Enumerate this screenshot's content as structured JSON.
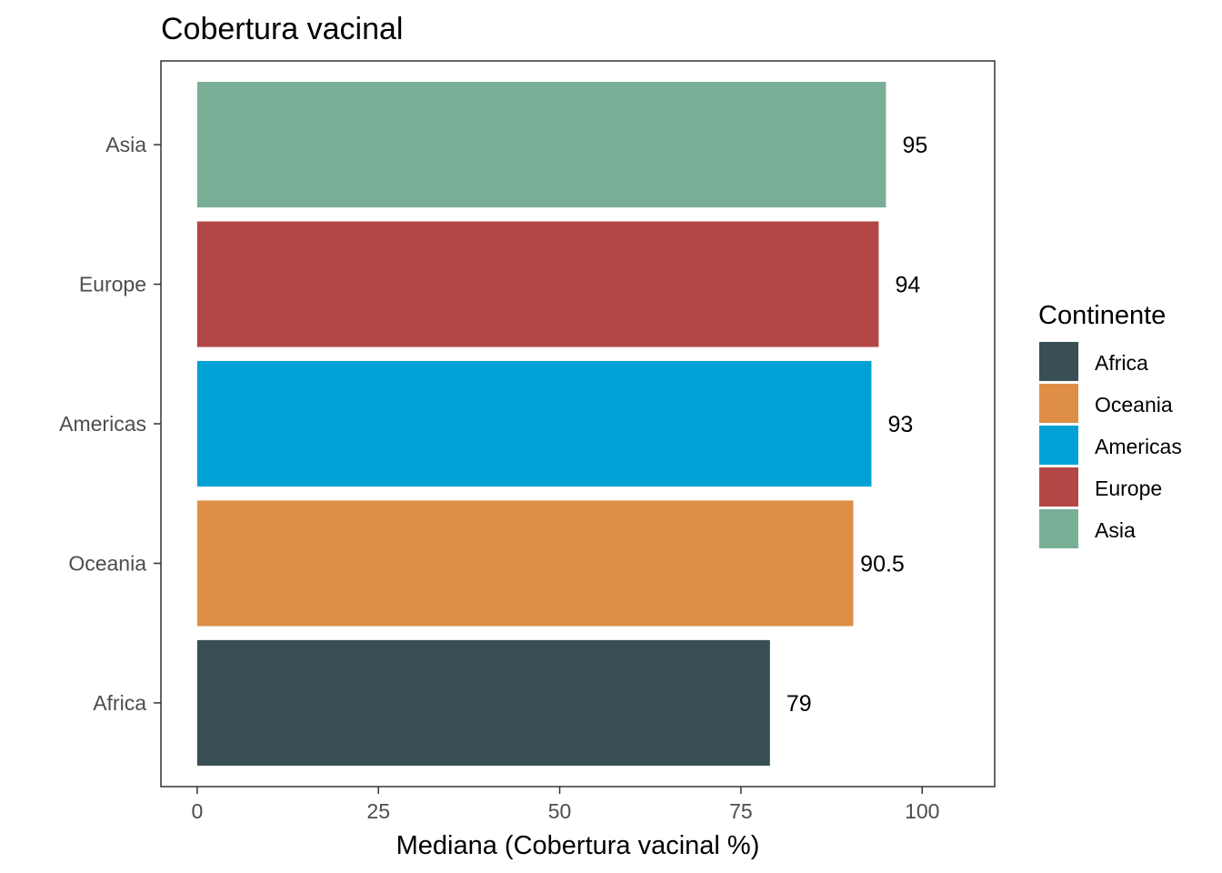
{
  "chart_data": {
    "type": "bar",
    "orientation": "horizontal",
    "title": "Cobertura vacinal",
    "xlabel": "Mediana (Cobertura vacinal %)",
    "ylabel": "",
    "xlim": [
      -5,
      110
    ],
    "xticks": [
      0,
      25,
      50,
      75,
      100
    ],
    "categories": [
      "Africa",
      "Oceania",
      "Americas",
      "Europe",
      "Asia"
    ],
    "values": [
      79,
      90.5,
      93,
      94,
      95
    ],
    "data_labels": [
      "79",
      "90.5",
      "93",
      "94",
      "95"
    ],
    "colors": [
      "#384F55",
      "#DE8F45",
      "#00A1D5",
      "#B24745",
      "#79AF97"
    ],
    "grid": false,
    "legend": {
      "title": "Continente",
      "placement": "right",
      "entries": [
        "Africa",
        "Oceania",
        "Americas",
        "Europe",
        "Asia"
      ]
    }
  }
}
